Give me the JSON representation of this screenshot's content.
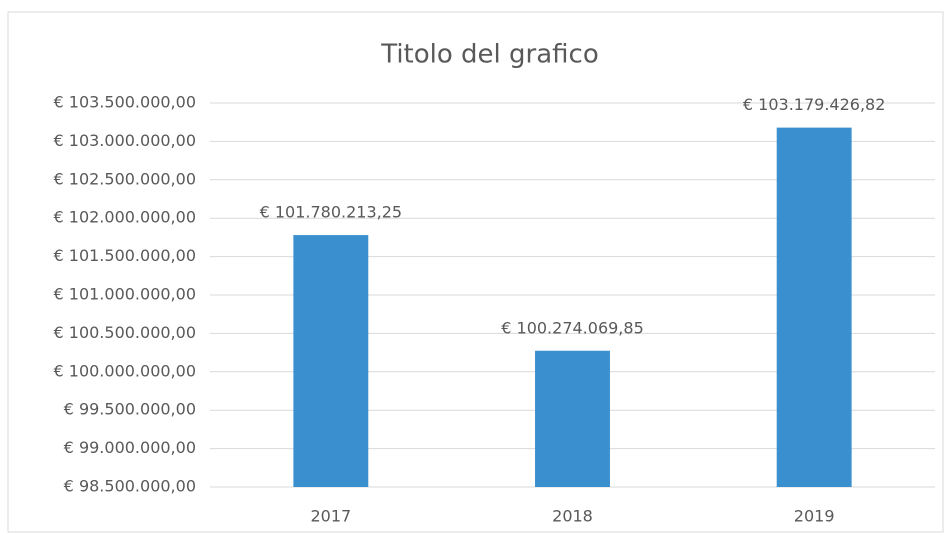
{
  "chart_data": {
    "type": "bar",
    "title": "Titolo del grafico",
    "categories": [
      "2017",
      "2018",
      "2019"
    ],
    "values": [
      101780213.25,
      100274069.85,
      103179426.82
    ],
    "value_labels": [
      "€ 101.780.213,25",
      "€ 100.274.069,85",
      "€ 103.179.426,82"
    ],
    "color": "#3a8fcf",
    "ylim": [
      98500000,
      103500000
    ],
    "yticks": [
      {
        "value": 98500000,
        "label": "€ 98.500.000,00"
      },
      {
        "value": 99000000,
        "label": "€ 99.000.000,00"
      },
      {
        "value": 99500000,
        "label": "€ 99.500.000,00"
      },
      {
        "value": 100000000,
        "label": "€ 100.000.000,00"
      },
      {
        "value": 100500000,
        "label": "€ 100.500.000,00"
      },
      {
        "value": 101000000,
        "label": "€ 101.000.000,00"
      },
      {
        "value": 101500000,
        "label": "€ 101.500.000,00"
      },
      {
        "value": 102000000,
        "label": "€ 102.000.000,00"
      },
      {
        "value": 102500000,
        "label": "€ 102.500.000,00"
      },
      {
        "value": 103000000,
        "label": "€ 103.000.000,00"
      },
      {
        "value": 103500000,
        "label": "€ 103.500.000,00"
      }
    ],
    "grid": true
  }
}
